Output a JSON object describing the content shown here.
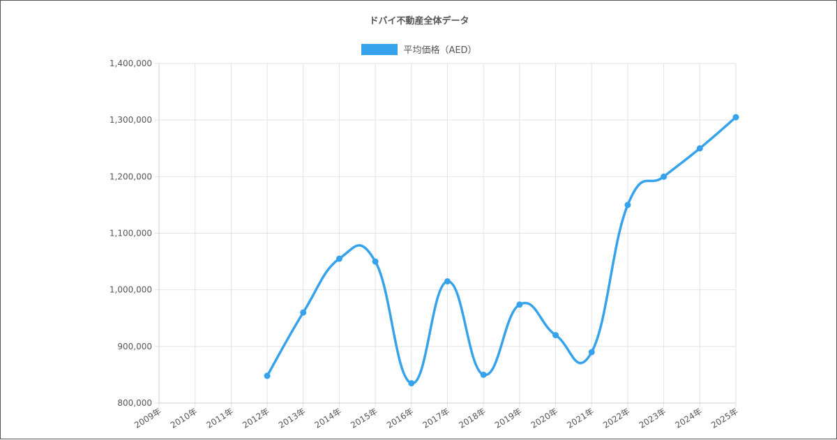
{
  "chart_data": {
    "type": "line",
    "title": "ドバイ不動産全体データ",
    "categories": [
      "2009年",
      "2010年",
      "2011年",
      "2012年",
      "2013年",
      "2014年",
      "2015年",
      "2016年",
      "2017年",
      "2018年",
      "2019年",
      "2020年",
      "2021年",
      "2022年",
      "2023年",
      "2024年",
      "2025年"
    ],
    "series": [
      {
        "name": "平均価格（AED）",
        "color": "#36a2eb",
        "values": [
          null,
          null,
          null,
          848000,
          960000,
          1055000,
          1050000,
          835000,
          1015000,
          850000,
          974000,
          920000,
          890000,
          1150000,
          1200000,
          1250000,
          1305000
        ]
      }
    ],
    "ylim": [
      800000,
      1400000
    ],
    "yticks": [
      "1,400,000",
      "1,300,000",
      "1,200,000",
      "1,100,000",
      "1,000,000",
      "900,000",
      "800,000"
    ],
    "grid": true,
    "legend_position": "top"
  }
}
